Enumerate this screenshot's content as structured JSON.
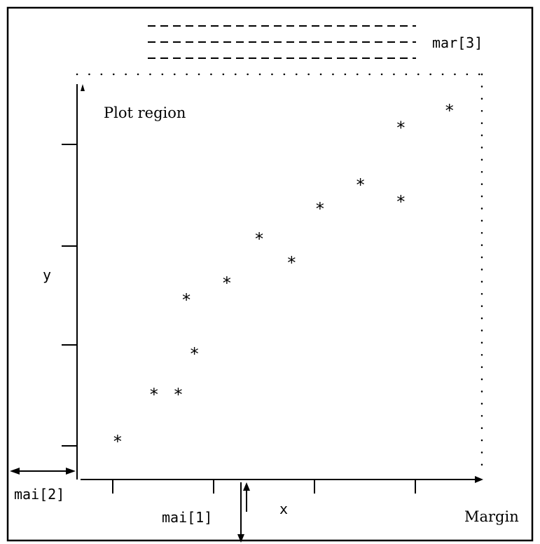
{
  "labels": {
    "plot_region": "Plot region",
    "y": "y",
    "x": "x",
    "mar3": "mar[3]",
    "mai2": "mai[2]",
    "mai1": "mai[1]",
    "margin": "Margin"
  },
  "point_glyph": "*",
  "chart_data": {
    "type": "scatter",
    "points": [
      {
        "x": 1.0,
        "y": 1.2
      },
      {
        "x": 1.9,
        "y": 2.6
      },
      {
        "x": 2.5,
        "y": 2.6
      },
      {
        "x": 2.7,
        "y": 5.4
      },
      {
        "x": 2.9,
        "y": 3.8
      },
      {
        "x": 3.7,
        "y": 5.9
      },
      {
        "x": 4.5,
        "y": 7.2
      },
      {
        "x": 5.3,
        "y": 6.5
      },
      {
        "x": 6.0,
        "y": 8.1
      },
      {
        "x": 7.0,
        "y": 8.8
      },
      {
        "x": 8.0,
        "y": 10.5
      },
      {
        "x": 8.0,
        "y": 8.3
      },
      {
        "x": 9.2,
        "y": 11.0
      }
    ],
    "xlim": [
      0,
      10
    ],
    "ylim": [
      0,
      12
    ],
    "xlabel": "x",
    "ylabel": "y"
  }
}
